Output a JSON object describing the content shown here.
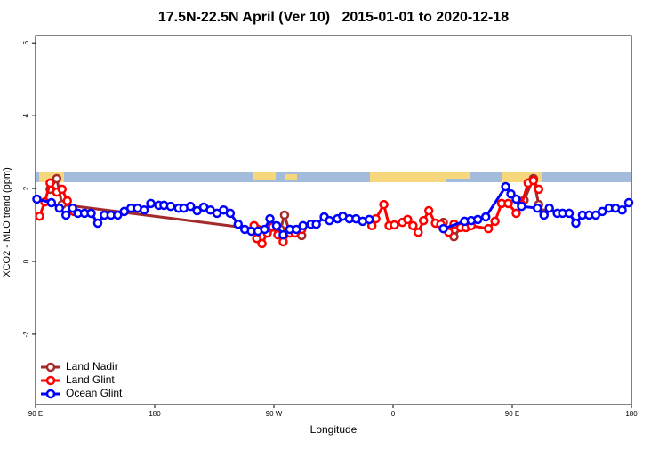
{
  "chart_data": {
    "type": "line",
    "title": "17.5N-22.5N April (Ver 10)   2015-01-01 to 2020-12-18",
    "xlabel": "Longitude",
    "ylabel": "XCO2 - MLO trend (ppm)",
    "xlim": [
      90,
      540
    ],
    "ylim": [
      -3.93,
      6.2
    ],
    "xticks": [
      {
        "value": 90,
        "label": "90 E"
      },
      {
        "value": 180,
        "label": "180"
      },
      {
        "value": 270,
        "label": "90 W"
      },
      {
        "value": 360,
        "label": "0"
      },
      {
        "value": 450,
        "label": "90 E"
      },
      {
        "value": 540,
        "label": "180"
      }
    ],
    "yticks": [
      -2,
      0,
      2,
      4,
      6
    ],
    "legend": "bottom-left",
    "series": [
      {
        "name": "Land Nadir",
        "color": "#a52a2a",
        "x": [
          101,
          106,
          110,
          258,
          265,
          275,
          278,
          282,
          291,
          null,
          398,
          406,
          412,
          null,
          459,
          466,
          470,
          474
        ],
        "values": [
          1.98,
          2.27,
          1.56,
          0.88,
          0.83,
          0.88,
          1.27,
          0.78,
          0.71,
          null,
          1.07,
          0.68,
          0.98,
          null,
          1.68,
          2.27,
          1.56,
          1.32
        ]
      },
      {
        "name": "Land Glint",
        "color": "#ff0000",
        "x": [
          93,
          97,
          101,
          106,
          110,
          114,
          119,
          null,
          255,
          257,
          261,
          265,
          269,
          273,
          277,
          282,
          286,
          291,
          null,
          344,
          347,
          353,
          357,
          361,
          367,
          371,
          375,
          379,
          383,
          387,
          392,
          396,
          402,
          406,
          411,
          415,
          419,
          432,
          437,
          442,
          447,
          453,
          457,
          462,
          466,
          470
        ],
        "values": [
          1.24,
          1.63,
          2.15,
          1.9,
          1.98,
          1.66,
          1.37,
          null,
          0.98,
          0.63,
          0.49,
          0.78,
          0.95,
          0.73,
          0.54,
          0.78,
          0.78,
          0.88,
          null,
          0.98,
          1.17,
          1.56,
          0.98,
          1.0,
          1.07,
          1.15,
          0.98,
          0.8,
          1.12,
          1.39,
          1.05,
          1.02,
          0.8,
          1.02,
          0.93,
          0.93,
          0.98,
          0.9,
          1.1,
          1.59,
          1.59,
          1.32,
          1.56,
          2.15,
          2.22,
          1.98
        ]
      },
      {
        "name": "Ocean Glint",
        "color": "#0000ff",
        "x": [
          91,
          102,
          108,
          113,
          118,
          122,
          127,
          132,
          137,
          142,
          147,
          152,
          157,
          162,
          167,
          172,
          177,
          183,
          187,
          192,
          198,
          202,
          207,
          212,
          217,
          222,
          227,
          232,
          237,
          243,
          248,
          253,
          258,
          263,
          267,
          272,
          277,
          282,
          287,
          292,
          298,
          302,
          308,
          312,
          318,
          322,
          327,
          332,
          337,
          342,
          null,
          398,
          414,
          419,
          424,
          430,
          445,
          449,
          453,
          457,
          469,
          474,
          478,
          484,
          488,
          493,
          498,
          503,
          508,
          513,
          518,
          523,
          528,
          533,
          538
        ],
        "values": [
          1.71,
          1.61,
          1.46,
          1.27,
          1.46,
          1.32,
          1.32,
          1.32,
          1.05,
          1.27,
          1.27,
          1.27,
          1.37,
          1.46,
          1.46,
          1.41,
          1.59,
          1.54,
          1.54,
          1.51,
          1.46,
          1.46,
          1.51,
          1.39,
          1.49,
          1.41,
          1.32,
          1.41,
          1.32,
          1.02,
          0.88,
          0.83,
          0.83,
          0.88,
          1.17,
          0.98,
          0.73,
          0.88,
          0.88,
          0.98,
          1.02,
          1.02,
          1.22,
          1.12,
          1.17,
          1.24,
          1.17,
          1.17,
          1.1,
          1.15,
          null,
          0.9,
          1.1,
          1.12,
          1.15,
          1.22,
          2.05,
          1.85,
          1.71,
          1.51,
          1.46,
          1.27,
          1.46,
          1.32,
          1.32,
          1.32,
          1.05,
          1.27,
          1.27,
          1.27,
          1.37,
          1.46,
          1.46,
          1.41,
          1.61
        ]
      }
    ]
  }
}
